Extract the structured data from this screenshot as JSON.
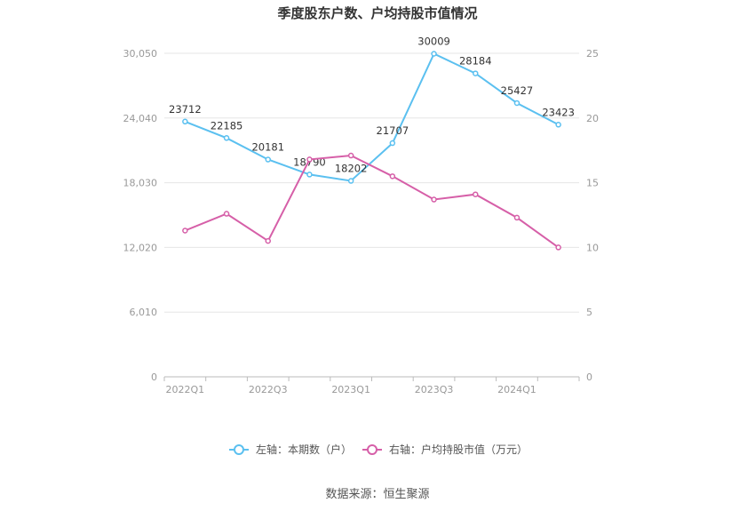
{
  "title": "季度股东户数、户均持股市值情况",
  "source": "数据来源：恒生聚源",
  "colors": {
    "left": "#5bc0f0",
    "right": "#d65fa8",
    "grid": "#e6e6e6",
    "axis": "#bbbbbb"
  },
  "chart_data": {
    "type": "line",
    "title": "季度股东户数、户均持股市值情况",
    "x": [
      "2022Q1",
      "2022Q2",
      "2022Q3",
      "2022Q4",
      "2023Q1",
      "2023Q2",
      "2023Q3",
      "2023Q4",
      "2024Q1",
      "2024Q2"
    ],
    "x_tick_labels": [
      "2022Q1",
      "2022Q3",
      "2023Q1",
      "2023Q3",
      "2024Q1"
    ],
    "left_axis": {
      "ticks": [
        "0",
        "6,010",
        "12,020",
        "18,030",
        "24,040",
        "30,050"
      ],
      "ylim": [
        0,
        30050
      ]
    },
    "right_axis": {
      "ticks": [
        "0",
        "5",
        "10",
        "15",
        "20",
        "25"
      ],
      "ylim": [
        0,
        25
      ]
    },
    "series": [
      {
        "name": "左轴：本期数（户）",
        "axis": "left",
        "values": [
          23712,
          22185,
          20181,
          18790,
          18202,
          21707,
          30009,
          28184,
          25427,
          23423
        ],
        "labels": [
          "23712",
          "22185",
          "20181",
          "18790",
          "18202",
          "21707",
          "30009",
          "28184",
          "25427",
          "23423"
        ]
      },
      {
        "name": "右轴：户均持股市值（万元）",
        "axis": "right",
        "values": [
          11.3,
          12.6,
          10.5,
          16.8,
          17.1,
          15.5,
          13.7,
          14.1,
          12.3,
          10.0
        ]
      }
    ],
    "grid": true,
    "legend_position": "bottom"
  }
}
